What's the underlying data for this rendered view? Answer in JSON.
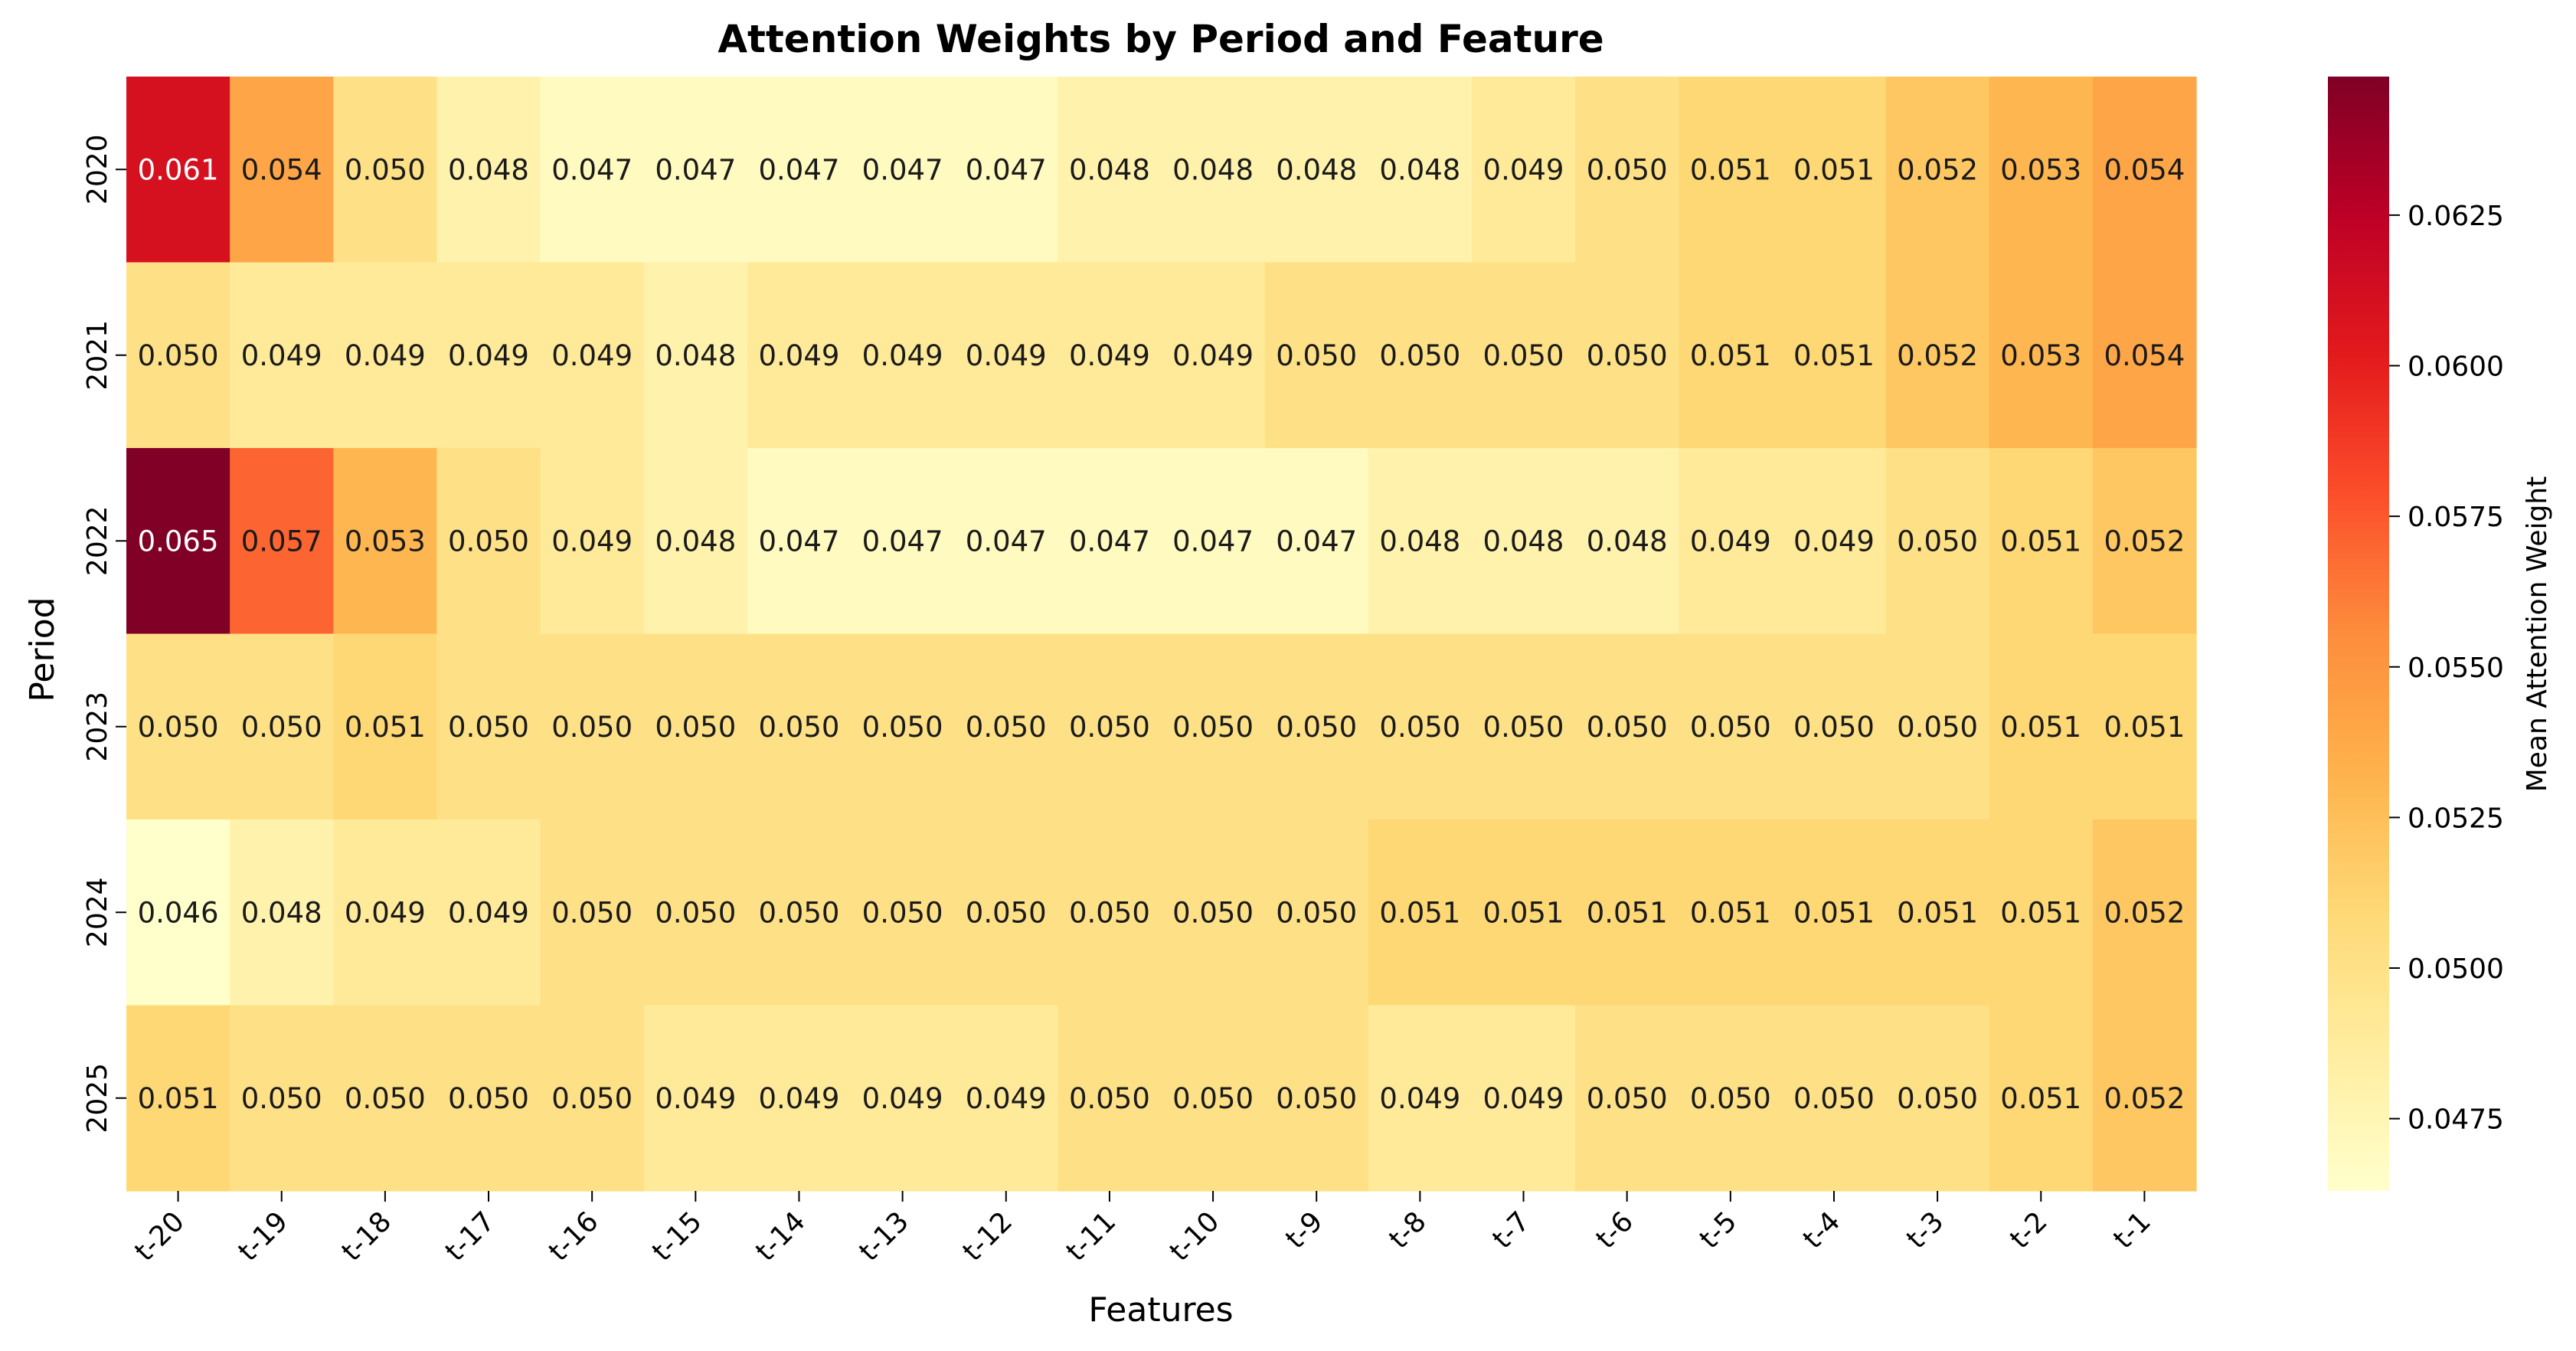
{
  "chart_data": {
    "type": "heatmap",
    "title": "Attention Weights by Period and Feature",
    "xlabel": "Features",
    "ylabel": "Period",
    "x_categories": [
      "t-20",
      "t-19",
      "t-18",
      "t-17",
      "t-16",
      "t-15",
      "t-14",
      "t-13",
      "t-12",
      "t-11",
      "t-10",
      "t-9",
      "t-8",
      "t-7",
      "t-6",
      "t-5",
      "t-4",
      "t-3",
      "t-2",
      "t-1"
    ],
    "y_categories": [
      "2020",
      "2021",
      "2022",
      "2023",
      "2024",
      "2025"
    ],
    "values": [
      [
        0.061,
        0.054,
        0.05,
        0.048,
        0.047,
        0.047,
        0.047,
        0.047,
        0.047,
        0.048,
        0.048,
        0.048,
        0.048,
        0.049,
        0.05,
        0.051,
        0.051,
        0.052,
        0.053,
        0.054
      ],
      [
        0.05,
        0.049,
        0.049,
        0.049,
        0.049,
        0.048,
        0.049,
        0.049,
        0.049,
        0.049,
        0.049,
        0.05,
        0.05,
        0.05,
        0.05,
        0.051,
        0.051,
        0.052,
        0.053,
        0.054
      ],
      [
        0.065,
        0.057,
        0.053,
        0.05,
        0.049,
        0.048,
        0.047,
        0.047,
        0.047,
        0.047,
        0.047,
        0.047,
        0.048,
        0.048,
        0.048,
        0.049,
        0.049,
        0.05,
        0.051,
        0.052
      ],
      [
        0.05,
        0.05,
        0.051,
        0.05,
        0.05,
        0.05,
        0.05,
        0.05,
        0.05,
        0.05,
        0.05,
        0.05,
        0.05,
        0.05,
        0.05,
        0.05,
        0.05,
        0.05,
        0.051,
        0.051
      ],
      [
        0.046,
        0.048,
        0.049,
        0.049,
        0.05,
        0.05,
        0.05,
        0.05,
        0.05,
        0.05,
        0.05,
        0.05,
        0.051,
        0.051,
        0.051,
        0.051,
        0.051,
        0.051,
        0.051,
        0.052
      ],
      [
        0.051,
        0.05,
        0.05,
        0.05,
        0.05,
        0.049,
        0.049,
        0.049,
        0.049,
        0.05,
        0.05,
        0.05,
        0.049,
        0.049,
        0.05,
        0.05,
        0.05,
        0.05,
        0.051,
        0.052
      ]
    ],
    "colormap": "YlOrRd",
    "colorbar": {
      "label": "Mean Attention Weight",
      "range": [
        0.0463,
        0.0648
      ],
      "ticks": [
        0.0475,
        0.05,
        0.0525,
        0.055,
        0.0575,
        0.06,
        0.0625
      ],
      "tick_labels": [
        "0.0475",
        "0.0500",
        "0.0525",
        "0.0550",
        "0.0575",
        "0.0600",
        "0.0625"
      ]
    },
    "annotations": true
  }
}
